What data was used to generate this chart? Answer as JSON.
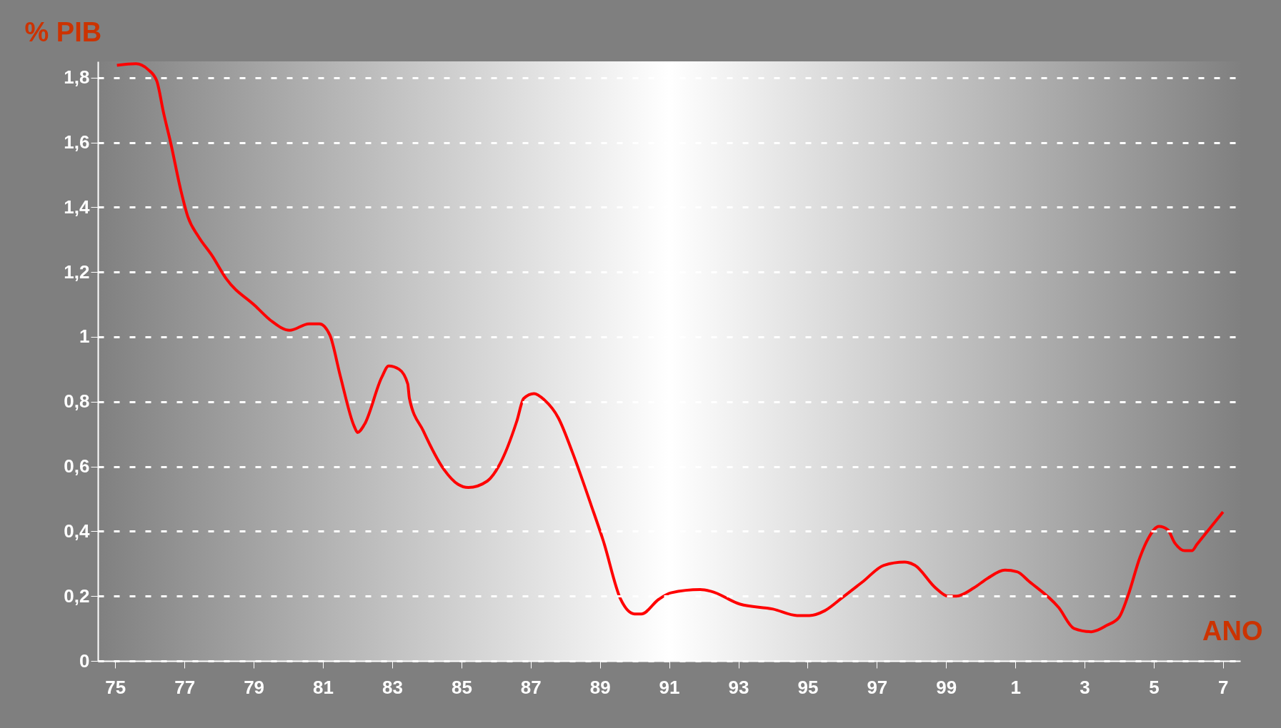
{
  "chart_data": {
    "type": "line",
    "ylabel": "% PIB",
    "xlabel": "ANO",
    "x": [
      "1975-01-19",
      "1975-08-08",
      "1975-12-13",
      "1976-03-14",
      "1976-05-26",
      "1976-08-07",
      "1976-11-25",
      "1977-02-06",
      "1977-05-27",
      "1977-10-20",
      "1978-03-15",
      "1979-01-19",
      "1979-07-02",
      "1980-01-15",
      "1980-08-07",
      "1980-11-25",
      "1981-03-15",
      "1981-07-02",
      "1981-11-25",
      "1982-01-01",
      "1982-03-15",
      "1982-09-13",
      "1982-11-25",
      "1983-03-15",
      "1983-06-14",
      "1983-07-02",
      "1983-11-25",
      "1984-07-02",
      "1984-11-25",
      "1985-03-15",
      "1985-10-01",
      "1986-02-06",
      "1986-08-08",
      "1986-10-20",
      "1987-02-06",
      "1987-05-27",
      "1987-10-20",
      "1988-03-15",
      "1988-10-01",
      "1989-02-06",
      "1989-08-08",
      "1990-01-01",
      "1990-03-15",
      "1990-09-13",
      "1991-01-19",
      "1991-11-25",
      "1992-03-15",
      "1993-01-19",
      "1994-01-01",
      "1994-09-13",
      "1995-01-19",
      "1995-07-02",
      "1996-01-01",
      "1996-08-08",
      "1997-03-15",
      "1997-10-20",
      "1998-02-06",
      "1998-09-13",
      "1999-01-19",
      "1999-04-20",
      "1999-10-20",
      "2000-03-15",
      "2000-09-13",
      "2001-01-19",
      "2001-05-27",
      "2002-04-02",
      "2002-09-13",
      "2003-03-15",
      "2003-08-26",
      "2004-01-01",
      "2004-04-02",
      "2004-08-08",
      "2004-11-07",
      "2005-02-24",
      "2005-05-27",
      "2005-08-08",
      "2005-11-25",
      "2006-02-06",
      "2006-04-02",
      "2007-01-01"
    ],
    "series": [
      {
        "color": "#ff0000",
        "values": [
          1.838,
          1.843,
          1.825,
          1.79,
          1.69,
          1.6,
          1.45,
          1.37,
          1.31,
          1.25,
          1.18,
          1.095,
          1.05,
          1.02,
          1.04,
          1.04,
          1.005,
          0.88,
          0.725,
          0.705,
          0.73,
          0.875,
          0.91,
          0.9,
          0.855,
          0.81,
          0.71,
          0.59,
          0.545,
          0.535,
          0.555,
          0.605,
          0.74,
          0.81,
          0.825,
          0.805,
          0.75,
          0.645,
          0.48,
          0.37,
          0.19,
          0.145,
          0.145,
          0.19,
          0.21,
          0.22,
          0.215,
          0.175,
          0.16,
          0.14,
          0.14,
          0.155,
          0.195,
          0.245,
          0.295,
          0.305,
          0.295,
          0.225,
          0.2,
          0.2,
          0.225,
          0.255,
          0.28,
          0.275,
          0.245,
          0.165,
          0.1,
          0.09,
          0.11,
          0.135,
          0.2,
          0.32,
          0.38,
          0.415,
          0.405,
          0.365,
          0.34,
          0.34,
          0.36,
          0.46
        ]
      }
    ],
    "xlim": [
      "1974-07-02",
      "2007-07-02"
    ],
    "xticks": [
      {
        "value": "1975",
        "label": "75"
      },
      {
        "value": "1977",
        "label": "77"
      },
      {
        "value": "1979",
        "label": "79"
      },
      {
        "value": "1981",
        "label": "81"
      },
      {
        "value": "1983",
        "label": "83"
      },
      {
        "value": "1985",
        "label": "85"
      },
      {
        "value": "1987",
        "label": "87"
      },
      {
        "value": "1989",
        "label": "89"
      },
      {
        "value": "1991",
        "label": "91"
      },
      {
        "value": "1993",
        "label": "93"
      },
      {
        "value": "1995",
        "label": "95"
      },
      {
        "value": "1997",
        "label": "97"
      },
      {
        "value": "1999",
        "label": "99"
      },
      {
        "value": "2001",
        "label": "1"
      },
      {
        "value": "2003",
        "label": "3"
      },
      {
        "value": "2005",
        "label": "5"
      },
      {
        "value": "2007",
        "label": "7"
      }
    ],
    "ylim": [
      0,
      1.85
    ],
    "yticks": [
      0,
      {
        "value": 0.2,
        "label": "0,2"
      },
      {
        "value": 0.4,
        "label": "0,4"
      },
      {
        "value": 0.6,
        "label": "0,6"
      },
      {
        "value": 0.8,
        "label": "0,8"
      },
      1,
      {
        "value": 1.2,
        "label": "1,2"
      },
      {
        "value": 1.4,
        "label": "1,4"
      },
      {
        "value": 1.6,
        "label": "1,6"
      },
      {
        "value": 1.8,
        "label": "1,8"
      }
    ],
    "grid": "y",
    "line_style": "solid",
    "marker": "none",
    "legend": false
  }
}
